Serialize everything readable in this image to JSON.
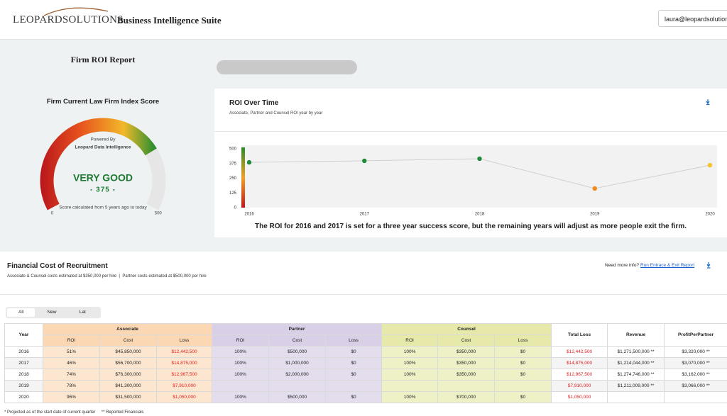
{
  "header": {
    "logo": "LEOPARDSOLUTIONS",
    "app_title": "Business Intelligence Suite",
    "user": "laura@leopardsolutions"
  },
  "report": {
    "title": "Firm ROI Report"
  },
  "gauge": {
    "title": "Firm Current Law Firm Index Score",
    "powered_by": "Powered By",
    "provider": "Leopard Data Intelligence",
    "rating": "VERY GOOD",
    "score": 375,
    "score_label": "- 375 -",
    "min": 0,
    "max": 500,
    "note": "Score calculated from 5 years ago to today"
  },
  "roi_chart": {
    "type": "line",
    "title": "ROI Over Time",
    "subtitle": "Associate, Partner and Counsel ROI year by year",
    "x": [
      2016,
      2017,
      2018,
      2019,
      2020
    ],
    "xlim": [
      2016,
      2020
    ],
    "values": [
      385,
      398,
      416,
      163,
      361
    ],
    "point_colors": [
      "#1e8a3a",
      "#1e8a3a",
      "#1e8a3a",
      "#f08a1c",
      "#f4c22b"
    ],
    "line_color": "#cfcfcf",
    "ylim": [
      0,
      500
    ],
    "yticks": [
      0,
      125,
      250,
      375,
      500
    ],
    "note": "The ROI for 2016 and 2017 is set for a three year success score, but the remaining years will adjust as more people exit the firm."
  },
  "financial": {
    "title": "Financial Cost of Recruitment",
    "subtitle": "Associate & Counsel costs estimated at $350,000 per hire  |  Partner costs estimated at $500,000 per hire",
    "more_info": "Need more info?",
    "link": "Run Entrace & Exit Report",
    "tabs": [
      "All",
      "New",
      "Lat"
    ],
    "active_tab": 0,
    "table": {
      "year_header": "Year",
      "groups": [
        {
          "name": "Associate",
          "columns": [
            "ROI",
            "Cost",
            "Loss"
          ]
        },
        {
          "name": "Partner",
          "columns": [
            "ROI",
            "Cost",
            "Loss"
          ]
        },
        {
          "name": "Counsel",
          "columns": [
            "ROI",
            "Cost",
            "Loss"
          ]
        }
      ],
      "extra_headers": [
        "Total Loss",
        "Revenue",
        "ProfitPerPartner"
      ],
      "rows": [
        [
          2016,
          "51%",
          "$45,850,000",
          "$12,442,500",
          "100%",
          "$500,000",
          "$0",
          "100%",
          "$350,000",
          "$0",
          "$12,442,500",
          "$1,271,500,000 **",
          "$3,320,000 **"
        ],
        [
          2017,
          "46%",
          "$56,700,000",
          "$14,875,000",
          "100%",
          "$1,000,000",
          "$0",
          "100%",
          "$350,000",
          "$0",
          "$14,875,000",
          "$1,214,044,000 **",
          "$3,070,000 **"
        ],
        [
          2018,
          "74%",
          "$76,300,000",
          "$12,967,500",
          "100%",
          "$2,000,000",
          "$0",
          "100%",
          "$350,000",
          "$0",
          "$12,967,500",
          "$1,274,746,000 **",
          "$3,162,000 **"
        ],
        [
          2019,
          "78%",
          "$41,300,000",
          "$7,910,000",
          null,
          null,
          null,
          null,
          null,
          null,
          "$7,910,000",
          "$1,211,009,000 **",
          "$3,066,000 **"
        ],
        [
          2020,
          "96%",
          "$31,500,000",
          "$1,050,000",
          "100%",
          "$500,000",
          "$0",
          "100%",
          "$700,000",
          "$0",
          "$1,050,000",
          null,
          null
        ]
      ]
    },
    "footnote": "* Projected as of the start date of current quarter     ** Reported Financials"
  }
}
